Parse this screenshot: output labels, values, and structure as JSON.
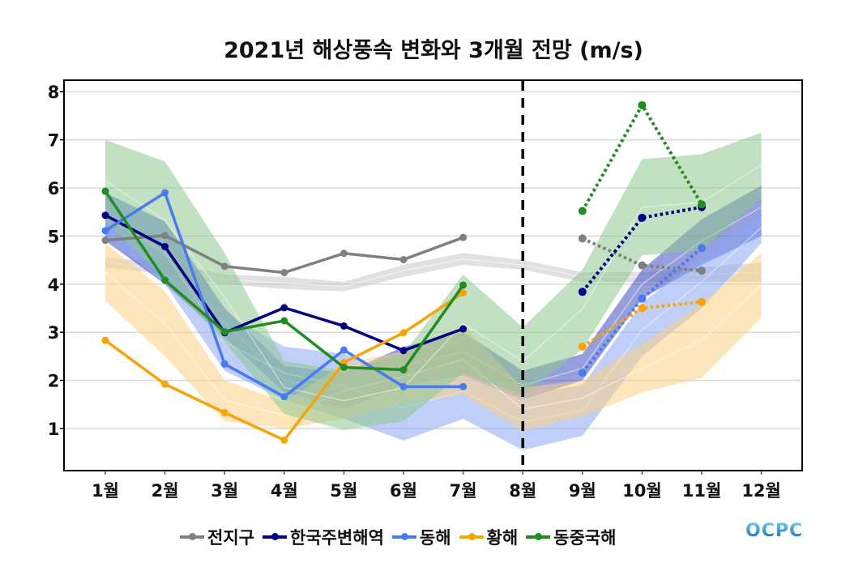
{
  "chart_data": {
    "type": "line",
    "title": "2021년 해상풍속 변화와 3개월 전망 (m/s)",
    "xlabel": "",
    "ylabel": "",
    "categories": [
      "1월",
      "2월",
      "3월",
      "4월",
      "5월",
      "6월",
      "7월",
      "8월",
      "9월",
      "10월",
      "11월",
      "12월"
    ],
    "ylim": [
      0.2,
      8.25
    ],
    "yticks": [
      1,
      2,
      3,
      4,
      5,
      6,
      7,
      8
    ],
    "grid": true,
    "divider_at": "8월",
    "legend_position": "bottom",
    "series": [
      {
        "name": "전지구",
        "color": "#808080",
        "band_color": "#c8c8c8",
        "observed": [
          4.91,
          5.01,
          4.37,
          4.24,
          4.64,
          4.51,
          4.97,
          null,
          null,
          null,
          null,
          null
        ],
        "forecast": [
          null,
          null,
          null,
          null,
          null,
          null,
          null,
          null,
          4.95,
          4.39,
          4.28,
          null
        ],
        "band_low": [
          4.35,
          4.2,
          4.0,
          3.9,
          3.85,
          4.15,
          4.4,
          4.3,
          4.05,
          4.05,
          4.05,
          4.05
        ],
        "band_high": [
          4.55,
          4.45,
          4.2,
          4.15,
          4.05,
          4.4,
          4.65,
          4.5,
          4.25,
          4.25,
          4.35,
          4.45
        ],
        "band_mid": [
          4.45,
          4.32,
          4.1,
          4.02,
          3.95,
          4.28,
          4.52,
          4.4,
          4.15,
          4.15,
          4.2,
          4.25
        ]
      },
      {
        "name": "한국주변해역",
        "color": "#000080",
        "band_color": "#3f4fbf",
        "observed": [
          5.43,
          4.78,
          2.99,
          3.51,
          3.13,
          2.62,
          3.07,
          null,
          null,
          null,
          null,
          null
        ],
        "forecast": [
          null,
          null,
          null,
          null,
          null,
          null,
          null,
          null,
          3.84,
          5.38,
          5.6,
          null
        ],
        "band_low": [
          4.9,
          4.0,
          2.9,
          1.75,
          1.4,
          1.9,
          2.1,
          1.6,
          2.0,
          3.7,
          4.4,
          5.0
        ],
        "band_high": [
          5.9,
          5.3,
          3.5,
          2.3,
          2.15,
          2.7,
          3.0,
          2.2,
          2.55,
          4.3,
          5.35,
          6.05
        ],
        "band_mid": [
          5.4,
          4.6,
          3.2,
          2.0,
          1.8,
          2.3,
          2.6,
          1.9,
          2.25,
          4.0,
          4.9,
          5.6
        ]
      },
      {
        "name": "동해",
        "color": "#4a7af0",
        "band_color": "#8aa8f5",
        "observed": [
          5.11,
          5.9,
          2.34,
          1.66,
          2.63,
          1.87,
          1.87,
          null,
          null,
          null,
          null,
          null
        ],
        "forecast": [
          null,
          null,
          null,
          null,
          null,
          null,
          null,
          null,
          2.16,
          3.7,
          4.75,
          null
        ],
        "band_low": [
          5.0,
          4.0,
          2.2,
          1.6,
          1.2,
          0.75,
          1.2,
          0.55,
          0.85,
          2.5,
          3.5,
          4.85
        ],
        "band_high": [
          5.9,
          5.3,
          3.4,
          2.7,
          2.55,
          2.1,
          2.35,
          1.7,
          1.9,
          3.6,
          4.6,
          5.5
        ],
        "band_mid": [
          5.45,
          4.65,
          2.8,
          2.15,
          1.88,
          1.43,
          1.78,
          1.13,
          1.38,
          3.05,
          4.05,
          5.18
        ]
      },
      {
        "name": "황해",
        "color": "#f5a40a",
        "band_color": "#fcd285",
        "observed": [
          2.83,
          1.92,
          1.33,
          0.76,
          2.37,
          2.99,
          3.82,
          null,
          null,
          null,
          null,
          null
        ],
        "forecast": [
          null,
          null,
          null,
          null,
          null,
          null,
          null,
          null,
          2.7,
          3.5,
          3.63,
          null
        ],
        "band_low": [
          3.65,
          2.5,
          1.15,
          1.0,
          1.2,
          1.55,
          1.7,
          0.95,
          1.25,
          1.75,
          2.05,
          3.3
        ],
        "band_high": [
          4.85,
          3.85,
          2.0,
          1.55,
          2.35,
          2.6,
          3.15,
          1.85,
          2.0,
          2.75,
          3.6,
          4.65
        ],
        "band_mid": [
          4.25,
          3.18,
          1.58,
          1.28,
          1.78,
          2.08,
          2.43,
          1.4,
          1.63,
          2.25,
          2.83,
          3.98
        ]
      },
      {
        "name": "동중국해",
        "color": "#228b22",
        "band_color": "#8fc98f",
        "observed": [
          5.93,
          4.08,
          3.01,
          3.24,
          2.27,
          2.22,
          3.98,
          null,
          null,
          null,
          null,
          null
        ],
        "forecast": [
          null,
          null,
          null,
          null,
          null,
          null,
          null,
          null,
          5.52,
          7.72,
          5.66,
          null
        ],
        "band_low": [
          5.3,
          4.1,
          2.8,
          1.3,
          0.97,
          1.15,
          2.15,
          1.7,
          2.65,
          4.6,
          4.7,
          5.8
        ],
        "band_high": [
          7.0,
          6.55,
          4.65,
          2.4,
          2.2,
          2.55,
          4.2,
          3.1,
          4.3,
          6.6,
          6.7,
          7.15
        ],
        "band_mid": [
          6.15,
          5.33,
          3.73,
          1.85,
          1.58,
          1.85,
          3.18,
          2.4,
          3.48,
          5.6,
          5.7,
          6.48
        ]
      }
    ]
  },
  "legend": [
    "전지구",
    "한국주변해역",
    "동해",
    "황해",
    "동중국해"
  ],
  "logo": "OCPC"
}
